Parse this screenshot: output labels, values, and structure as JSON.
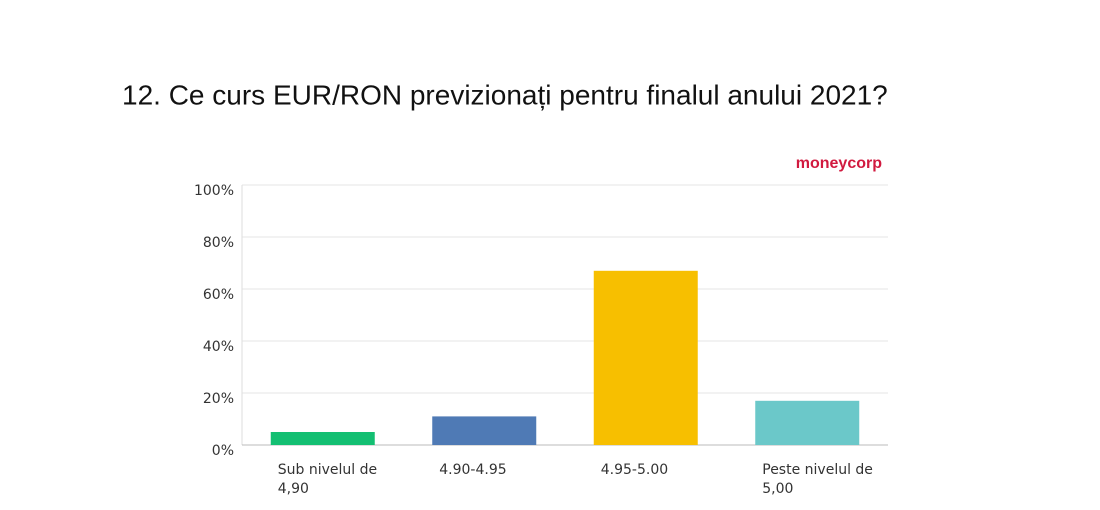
{
  "chart_data": {
    "type": "bar",
    "title": "12. Ce curs EUR/RON previzionați pentru finalul anului 2021?",
    "logo": "moneycorp",
    "categories": [
      "Sub nivelul de 4,90",
      "4.90-4.95",
      "4.95-5.00",
      "Peste nivelul de 5,00"
    ],
    "values": [
      5,
      11,
      67,
      17
    ],
    "colors": [
      "#13bf72",
      "#4f7ab5",
      "#f7bf00",
      "#6bc8c9"
    ],
    "ylim": [
      0,
      100
    ],
    "yticks": [
      {
        "value": 0,
        "label": "0%"
      },
      {
        "value": 20,
        "label": "20%"
      },
      {
        "value": 40,
        "label": "40%"
      },
      {
        "value": 60,
        "label": "60%"
      },
      {
        "value": 80,
        "label": "80%"
      },
      {
        "value": 100,
        "label": "100%"
      }
    ],
    "grid": true
  }
}
